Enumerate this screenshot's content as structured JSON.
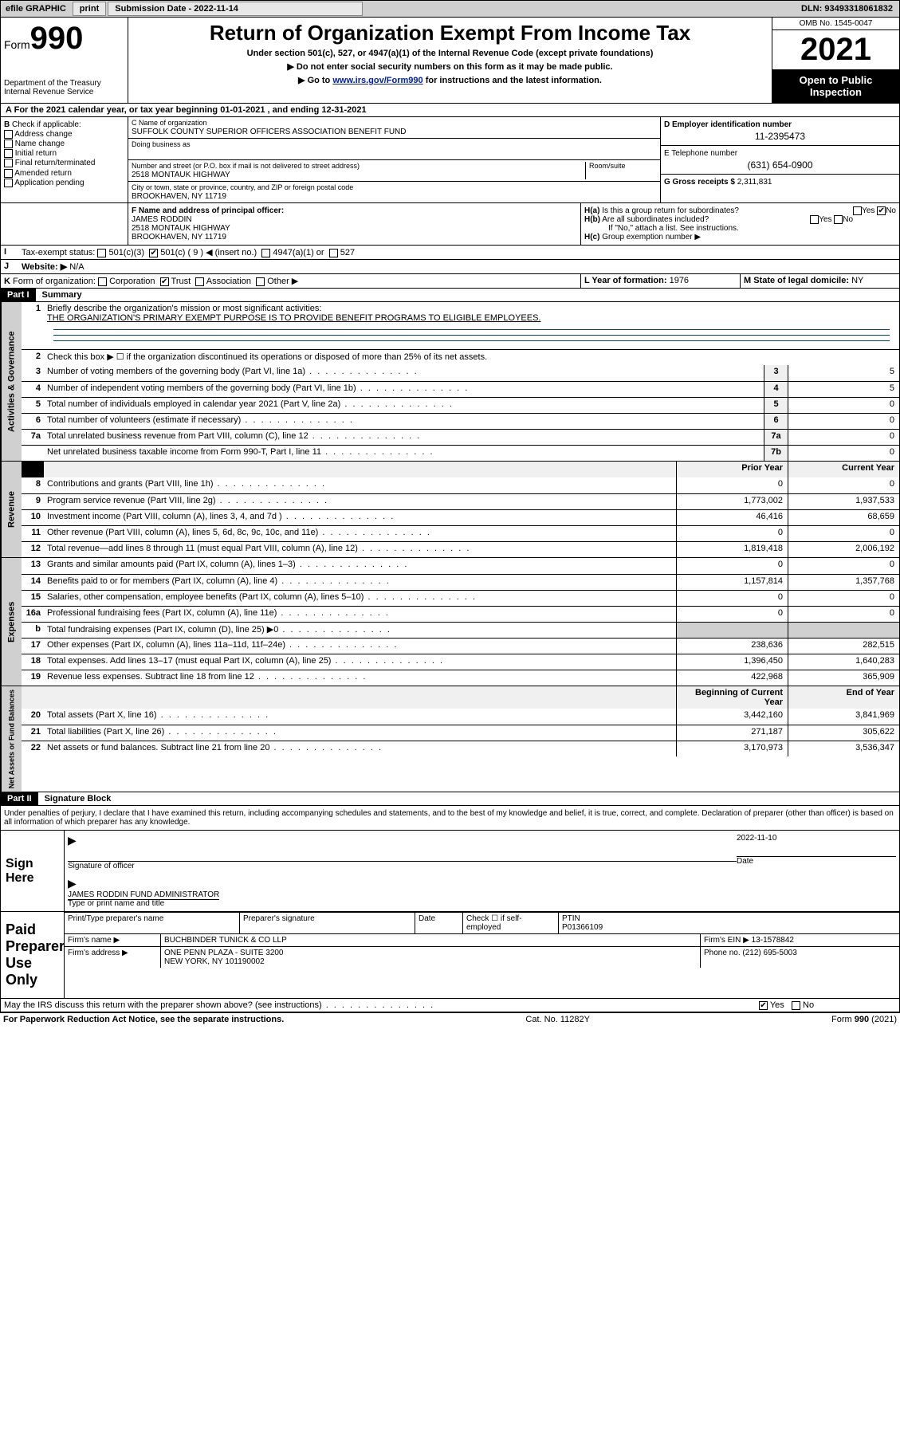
{
  "topbar": {
    "efile": "efile GRAPHIC",
    "print": "print",
    "sub_label": "Submission Date - 2022-11-14",
    "dln": "DLN: 93493318061832"
  },
  "header": {
    "form_word": "Form",
    "form_num": "990",
    "dept": "Department of the Treasury",
    "irs": "Internal Revenue Service",
    "title": "Return of Organization Exempt From Income Tax",
    "sub1": "Under section 501(c), 527, or 4947(a)(1) of the Internal Revenue Code (except private foundations)",
    "sub2": "▶ Do not enter social security numbers on this form as it may be made public.",
    "sub3_pre": "▶ Go to ",
    "sub3_link": "www.irs.gov/Form990",
    "sub3_post": " for instructions and the latest information.",
    "omb": "OMB No. 1545-0047",
    "year": "2021",
    "open": "Open to Public Inspection"
  },
  "periodA": "For the 2021 calendar year, or tax year beginning 01-01-2021   , and ending 12-31-2021",
  "boxB": {
    "label": "Check if applicable:",
    "opts": [
      "Address change",
      "Name change",
      "Initial return",
      "Final return/terminated",
      "Amended return",
      "Application pending"
    ]
  },
  "boxC": {
    "name_lbl": "C Name of organization",
    "name": "SUFFOLK COUNTY SUPERIOR OFFICERS ASSOCIATION BENEFIT FUND",
    "dba_lbl": "Doing business as",
    "addr_lbl": "Number and street (or P.O. box if mail is not delivered to street address)",
    "room_lbl": "Room/suite",
    "addr": "2518 MONTAUK HIGHWAY",
    "city_lbl": "City or town, state or province, country, and ZIP or foreign postal code",
    "city": "BROOKHAVEN, NY  11719"
  },
  "boxD": {
    "lbl": "D Employer identification number",
    "val": "11-2395473"
  },
  "boxE": {
    "lbl": "E Telephone number",
    "val": "(631) 654-0900"
  },
  "boxG": {
    "lbl": "G Gross receipts $",
    "val": "2,311,831"
  },
  "boxF": {
    "lbl": "F  Name and address of principal officer:",
    "name": "JAMES RODDIN",
    "addr1": "2518 MONTAUK HIGHWAY",
    "addr2": "BROOKHAVEN, NY  11719"
  },
  "boxH": {
    "ha": "Is this a group return for subordinates?",
    "hb": "Are all subordinates included?",
    "hnote": "If \"No,\" attach a list. See instructions.",
    "hc": "Group exemption number ▶",
    "yes": "Yes",
    "no": "No"
  },
  "boxI": {
    "lbl": "Tax-exempt status:",
    "o1": "501(c)(3)",
    "o2": "501(c) ( 9 ) ◀ (insert no.)",
    "o3": "4947(a)(1) or",
    "o4": "527"
  },
  "boxJ": {
    "lbl": "Website: ▶",
    "val": "N/A"
  },
  "boxK": {
    "lbl": "Form of organization:",
    "o1": "Corporation",
    "o2": "Trust",
    "o3": "Association",
    "o4": "Other ▶"
  },
  "boxL": {
    "lbl": "L Year of formation:",
    "val": "1976"
  },
  "boxM": {
    "lbl": "M State of legal domicile:",
    "val": "NY"
  },
  "part1": {
    "hdr": "Part I",
    "title": "Summary",
    "l1a": "Briefly describe the organization's mission or most significant activities:",
    "l1b": "THE ORGANIZATION'S PRIMARY EXEMPT PURPOSE IS TO PROVIDE BENEFIT PROGRAMS TO ELIGIBLE EMPLOYEES.",
    "l2": "Check this box ▶ ☐  if the organization discontinued its operations or disposed of more than 25% of its net assets.",
    "lines_gov": [
      {
        "n": "3",
        "t": "Number of voting members of the governing body (Part VI, line 1a)",
        "box": "3",
        "v": "5"
      },
      {
        "n": "4",
        "t": "Number of independent voting members of the governing body (Part VI, line 1b)",
        "box": "4",
        "v": "5"
      },
      {
        "n": "5",
        "t": "Total number of individuals employed in calendar year 2021 (Part V, line 2a)",
        "box": "5",
        "v": "0"
      },
      {
        "n": "6",
        "t": "Total number of volunteers (estimate if necessary)",
        "box": "6",
        "v": "0"
      },
      {
        "n": "7a",
        "t": "Total unrelated business revenue from Part VIII, column (C), line 12",
        "box": "7a",
        "v": "0"
      },
      {
        "n": "",
        "t": "Net unrelated business taxable income from Form 990-T, Part I, line 11",
        "box": "7b",
        "v": "0"
      }
    ],
    "col_prior": "Prior Year",
    "col_curr": "Current Year",
    "lines_rev": [
      {
        "n": "8",
        "t": "Contributions and grants (Part VIII, line 1h)",
        "p": "0",
        "c": "0"
      },
      {
        "n": "9",
        "t": "Program service revenue (Part VIII, line 2g)",
        "p": "1,773,002",
        "c": "1,937,533"
      },
      {
        "n": "10",
        "t": "Investment income (Part VIII, column (A), lines 3, 4, and 7d )",
        "p": "46,416",
        "c": "68,659"
      },
      {
        "n": "11",
        "t": "Other revenue (Part VIII, column (A), lines 5, 6d, 8c, 9c, 10c, and 11e)",
        "p": "0",
        "c": "0"
      },
      {
        "n": "12",
        "t": "Total revenue—add lines 8 through 11 (must equal Part VIII, column (A), line 12)",
        "p": "1,819,418",
        "c": "2,006,192"
      }
    ],
    "lines_exp": [
      {
        "n": "13",
        "t": "Grants and similar amounts paid (Part IX, column (A), lines 1–3)",
        "p": "0",
        "c": "0"
      },
      {
        "n": "14",
        "t": "Benefits paid to or for members (Part IX, column (A), line 4)",
        "p": "1,157,814",
        "c": "1,357,768"
      },
      {
        "n": "15",
        "t": "Salaries, other compensation, employee benefits (Part IX, column (A), lines 5–10)",
        "p": "0",
        "c": "0"
      },
      {
        "n": "16a",
        "t": "Professional fundraising fees (Part IX, column (A), line 11e)",
        "p": "0",
        "c": "0"
      },
      {
        "n": "b",
        "t": "Total fundraising expenses (Part IX, column (D), line 25) ▶0",
        "p": "",
        "c": "",
        "shaded": true
      },
      {
        "n": "17",
        "t": "Other expenses (Part IX, column (A), lines 11a–11d, 11f–24e)",
        "p": "238,636",
        "c": "282,515"
      },
      {
        "n": "18",
        "t": "Total expenses. Add lines 13–17 (must equal Part IX, column (A), line 25)",
        "p": "1,396,450",
        "c": "1,640,283"
      },
      {
        "n": "19",
        "t": "Revenue less expenses. Subtract line 18 from line 12",
        "p": "422,968",
        "c": "365,909"
      }
    ],
    "col_begin": "Beginning of Current Year",
    "col_end": "End of Year",
    "lines_net": [
      {
        "n": "20",
        "t": "Total assets (Part X, line 16)",
        "p": "3,442,160",
        "c": "3,841,969"
      },
      {
        "n": "21",
        "t": "Total liabilities (Part X, line 26)",
        "p": "271,187",
        "c": "305,622"
      },
      {
        "n": "22",
        "t": "Net assets or fund balances. Subtract line 21 from line 20",
        "p": "3,170,973",
        "c": "3,536,347"
      }
    ],
    "vtabs": {
      "gov": "Activities & Governance",
      "rev": "Revenue",
      "exp": "Expenses",
      "net": "Net Assets or Fund Balances"
    }
  },
  "part2": {
    "hdr": "Part II",
    "title": "Signature Block",
    "decl": "Under penalties of perjury, I declare that I have examined this return, including accompanying schedules and statements, and to the best of my knowledge and belief, it is true, correct, and complete. Declaration of preparer (other than officer) is based on all information of which preparer has any knowledge.",
    "sign_here": "Sign Here",
    "sig_officer": "Signature of officer",
    "sig_date": "Date",
    "sig_date_val": "2022-11-10",
    "sig_name": "JAMES RODDIN  FUND ADMINISTRATOR",
    "sig_name_lbl": "Type or print name and title",
    "paid": "Paid Preparer Use Only",
    "prep_name_lbl": "Print/Type preparer's name",
    "prep_sig_lbl": "Preparer's signature",
    "date_lbl": "Date",
    "check_lbl": "Check ☐ if self-employed",
    "ptin_lbl": "PTIN",
    "ptin": "P01366109",
    "firm_name_lbl": "Firm's name    ▶",
    "firm_name": "BUCHBINDER TUNICK & CO LLP",
    "firm_ein_lbl": "Firm's EIN ▶",
    "firm_ein": "13-1578842",
    "firm_addr_lbl": "Firm's address ▶",
    "firm_addr1": "ONE PENN PLAZA - SUITE 3200",
    "firm_addr2": "NEW YORK, NY  101190002",
    "phone_lbl": "Phone no.",
    "phone": "(212) 695-5003",
    "discuss": "May the IRS discuss this return with the preparer shown above? (see instructions)",
    "yes": "Yes",
    "no": "No"
  },
  "footer": {
    "left": "For Paperwork Reduction Act Notice, see the separate instructions.",
    "mid": "Cat. No. 11282Y",
    "right": "Form 990 (2021)"
  },
  "colors": {
    "link": "#0020aa",
    "rule": "#004080"
  }
}
